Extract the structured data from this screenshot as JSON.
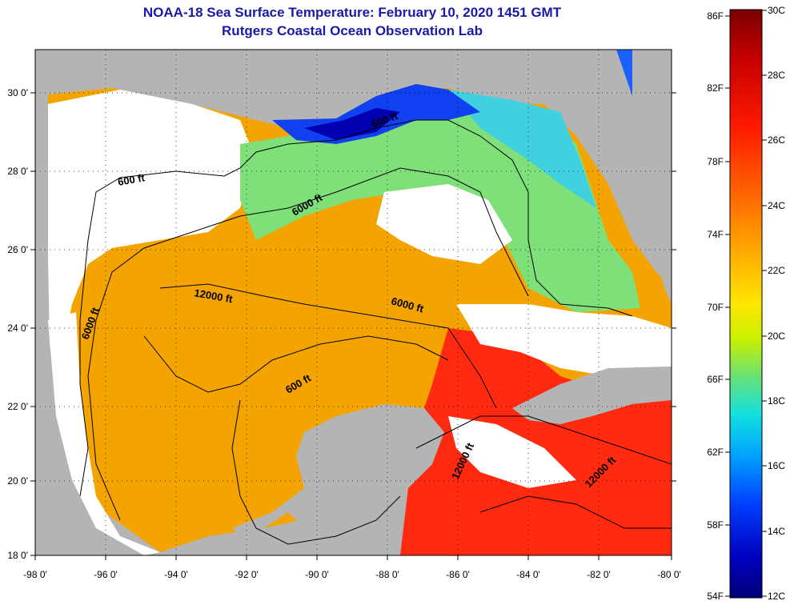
{
  "header": {
    "title": "NOAA-18 Sea Surface Temperature:  February 10, 2020 1451 GMT",
    "subtitle": "Rutgers Coastal Ocean Observation Lab"
  },
  "map": {
    "lat_labels": [
      "30 0'",
      "28 0'",
      "26 0'",
      "24 0'",
      "22 0'",
      "20 0'",
      "18 0'"
    ],
    "lon_labels": [
      "-98 0'",
      "-96 0'",
      "-94 0'",
      "-92 0'",
      "-90 0'",
      "-88 0'",
      "-86 0'",
      "-84 0'",
      "-82 0'",
      "-80 0'"
    ],
    "contour_labels": [
      "600 ft",
      "600 ft",
      "6000 ft",
      "6000 ft",
      "6000 ft",
      "12000 ft",
      "600 ft",
      "12000 ft",
      "12000 ft"
    ],
    "land_color": "#b4b4b4",
    "cloud_color": "#ffffff"
  },
  "colorbar": {
    "f_labels": [
      "86F",
      "82F",
      "78F",
      "74F",
      "70F",
      "66F",
      "62F",
      "58F",
      "54F"
    ],
    "c_labels": [
      "30C",
      "28C",
      "26C",
      "24C",
      "22C",
      "20C",
      "18C",
      "16C",
      "14C",
      "12C"
    ],
    "colors": [
      "#7a0000",
      "#c40000",
      "#ff1a00",
      "#ff6a00",
      "#ffb000",
      "#ffe600",
      "#c8f000",
      "#60e080",
      "#10e0e0",
      "#00a0ff",
      "#0040ff",
      "#0000c0",
      "#00007a"
    ]
  }
}
